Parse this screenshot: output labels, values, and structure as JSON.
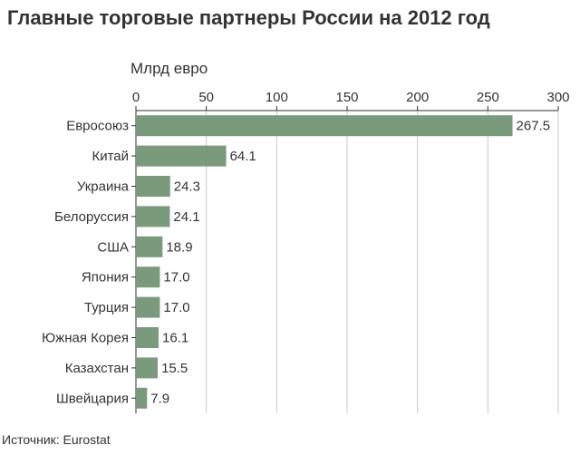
{
  "title": "Главные торговые партнеры России на 2012 год",
  "source": "Источник: Eurostat",
  "chart_data": {
    "type": "bar",
    "orientation": "horizontal",
    "title": "Главные торговые партнеры России на 2012 год",
    "xlabel": "Млрд евро",
    "ylabel": "",
    "categories": [
      "Евросоюз",
      "Китай",
      "Украина",
      "Белоруссия",
      "США",
      "Япония",
      "Турция",
      "Южная Корея",
      "Казахстан",
      "Швейцария"
    ],
    "values": [
      267.5,
      64.1,
      24.3,
      24.1,
      18.9,
      17.0,
      17.0,
      16.1,
      15.5,
      7.9
    ],
    "value_labels": [
      "267.5",
      "64.1",
      "24.3",
      "24.1",
      "18.9",
      "17.0",
      "17.0",
      "16.1",
      "15.5",
      "7.9"
    ],
    "xlim": [
      0,
      300
    ],
    "xticks": [
      0,
      50,
      100,
      150,
      200,
      250,
      300
    ],
    "grid": true,
    "bar_color": "#7a9a7c",
    "grid_color": "#c8c8c8",
    "axis_color": "#333333"
  }
}
